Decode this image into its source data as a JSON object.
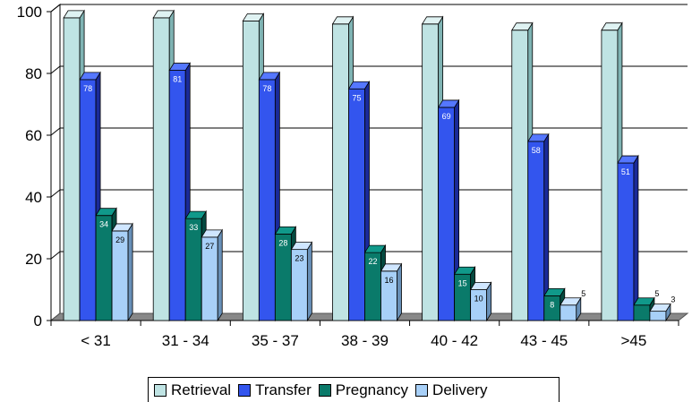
{
  "chart_data": {
    "type": "bar",
    "categories": [
      "< 31",
      "31 - 34",
      "35 - 37",
      "38 - 39",
      "40 - 42",
      "43 - 45",
      ">45"
    ],
    "series": [
      {
        "name": "Retrieval",
        "values": [
          98,
          98,
          97,
          96,
          96,
          94,
          94
        ],
        "color": "#bfe3e3",
        "side": "#7fb3b3",
        "top": "#dff2f2",
        "labeled": false
      },
      {
        "name": "Transfer",
        "values": [
          78,
          81,
          78,
          75,
          69,
          58,
          51
        ],
        "color": "#3355ee",
        "side": "#1a2a99",
        "top": "#5577ff",
        "labeled": true,
        "labelColor": "#ffffff"
      },
      {
        "name": "Pregnancy",
        "values": [
          34,
          33,
          28,
          22,
          15,
          8,
          5
        ],
        "color": "#0a7a6a",
        "side": "#054a40",
        "top": "#10998a",
        "labeled": true,
        "labelColor": "#ffffff"
      },
      {
        "name": "Delivery",
        "values": [
          29,
          27,
          23,
          16,
          10,
          5,
          3
        ],
        "color": "#a8d0f8",
        "side": "#6890b8",
        "top": "#cfe6ff",
        "labeled": true,
        "labelColor": "#000000"
      }
    ],
    "ylim": [
      0,
      100
    ],
    "yticks": [
      0,
      20,
      40,
      60,
      80,
      100
    ],
    "grid": true,
    "legend_position": "bottom"
  }
}
